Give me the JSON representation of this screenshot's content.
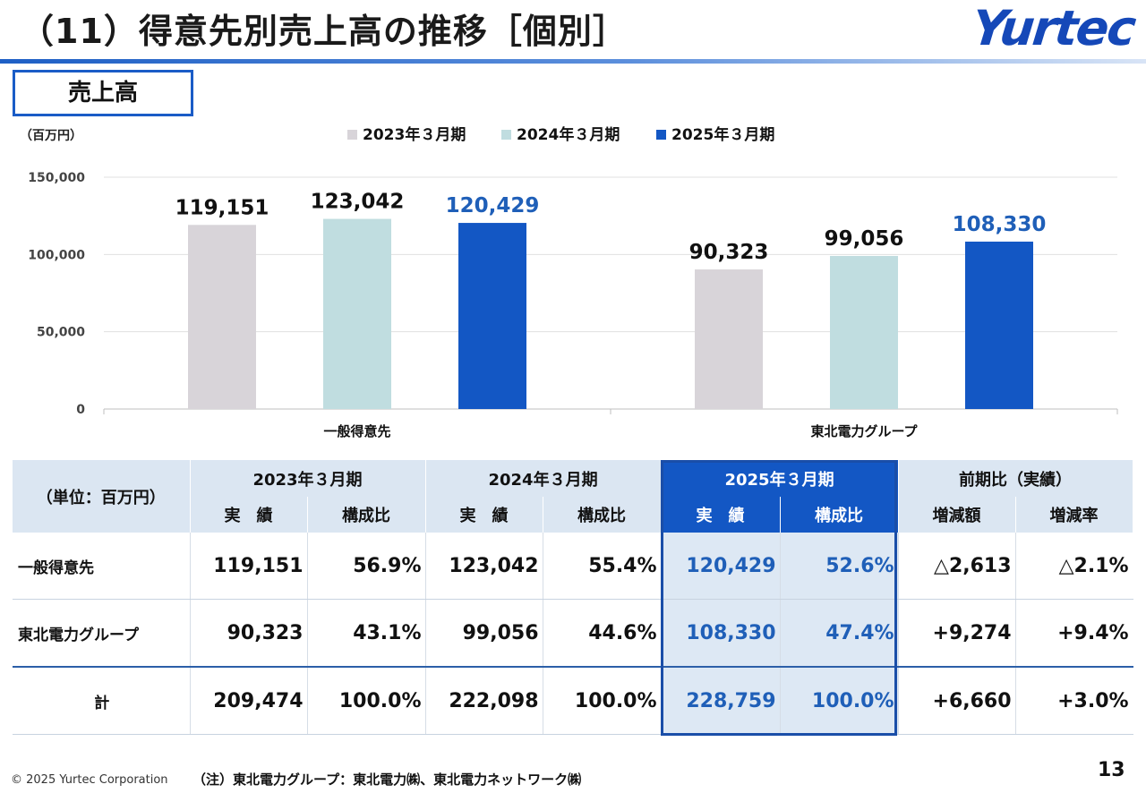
{
  "header": {
    "title": "（11）得意先別売上高の推移［個別］",
    "logo": "Yurtec",
    "section": "売上高"
  },
  "colors": {
    "accent": "#1357c4",
    "series2023": "#d8d4d9",
    "series2024": "#c0dde0",
    "series2025": "#1357c4"
  },
  "chart_data": {
    "type": "bar",
    "unit_label": "（百万円）",
    "categories": [
      "一般得意先",
      "東北電力グループ"
    ],
    "series": [
      {
        "name": "2023年３月期",
        "values": [
          119151,
          90323
        ],
        "labels": [
          "119,151",
          "90,323"
        ]
      },
      {
        "name": "2024年３月期",
        "values": [
          123042,
          99056
        ],
        "labels": [
          "123,042",
          "99,056"
        ]
      },
      {
        "name": "2025年３月期",
        "values": [
          120429,
          108330
        ],
        "labels": [
          "120,429",
          "108,330"
        ]
      }
    ],
    "ylim": [
      0,
      150000
    ],
    "yticks": [
      0,
      50000,
      100000,
      150000
    ],
    "ytick_labels": [
      "0",
      "50,000",
      "100,000",
      "150,000"
    ],
    "grid": true,
    "legend": "top-center"
  },
  "table": {
    "unit": "（単位：百万円）",
    "periods": [
      "2023年３月期",
      "2024年３月期",
      "2025年３月期"
    ],
    "compare": "前期比（実績）",
    "sub": {
      "actual": "実　績",
      "ratio": "構成比",
      "diff": "増減額",
      "rate": "増減率"
    },
    "rows": [
      {
        "label": "一般得意先",
        "a23": "119,151",
        "r23": "56.9%",
        "a24": "123,042",
        "r24": "55.4%",
        "a25": "120,429",
        "r25": "52.6%",
        "diff": "△2,613",
        "rate": "△2.1%"
      },
      {
        "label": "東北電力グループ",
        "a23": "90,323",
        "r23": "43.1%",
        "a24": "99,056",
        "r24": "44.6%",
        "a25": "108,330",
        "r25": "47.4%",
        "diff": "+9,274",
        "rate": "+9.4%"
      },
      {
        "label": "計",
        "a23": "209,474",
        "r23": "100.0%",
        "a24": "222,098",
        "r24": "100.0%",
        "a25": "228,759",
        "r25": "100.0%",
        "diff": "+6,660",
        "rate": "+3.0%"
      }
    ]
  },
  "footer": {
    "copyright": "© 2025 Yurtec Corporation",
    "note": "（注）東北電力グループ：東北電力㈱、東北電力ネットワーク㈱",
    "page": "13"
  }
}
